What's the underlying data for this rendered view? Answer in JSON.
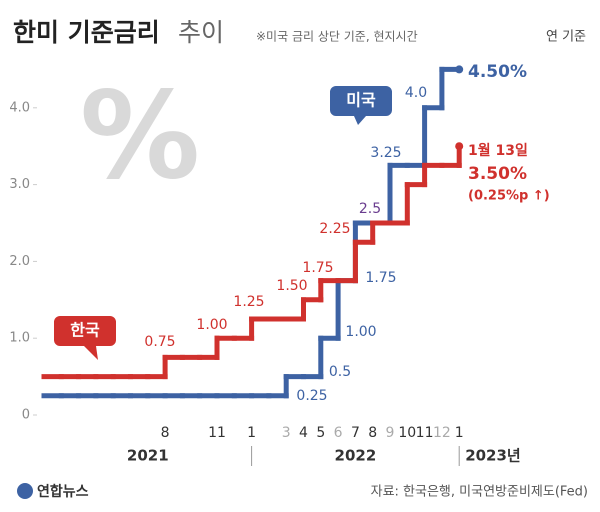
{
  "chart_data": {
    "type": "step",
    "title": "한미 기준금리",
    "subtitle": "추이",
    "note": "※미국 금리 상단 기준, 현지시간",
    "unit_note": "연 기준",
    "watermark": "%",
    "source": "자료: 한국은행, 미국연방준비제도(Fed)",
    "logo": "연합뉴스",
    "categories": [
      null,
      null,
      null,
      null,
      null,
      null,
      null,
      "8",
      null,
      null,
      "11",
      null,
      "1",
      null,
      "3",
      "4",
      "5",
      "6",
      "7",
      "8",
      "9",
      "10",
      "11",
      "12",
      "1"
    ],
    "year_labels": [
      {
        "label": "2021",
        "from": 0,
        "to": 12
      },
      {
        "label": "2022",
        "from": 12,
        "to": 24
      },
      {
        "label": "2023년",
        "from": 24,
        "to": 24
      }
    ],
    "ylim": [
      0,
      4.5
    ],
    "yticks": [
      0,
      {
        "value": 1,
        "label": "1.0"
      },
      {
        "value": 2,
        "label": "2.0"
      },
      {
        "value": 3,
        "label": "3.0"
      },
      {
        "value": 4,
        "label": "4.0"
      }
    ],
    "grid": false,
    "series": [
      {
        "name": "한국",
        "color": "#d0312d",
        "values": [
          0.5,
          0.5,
          0.5,
          0.5,
          0.5,
          0.5,
          0.5,
          0.75,
          0.75,
          0.75,
          1.0,
          1.0,
          1.25,
          1.25,
          1.25,
          1.5,
          1.75,
          1.75,
          2.25,
          2.5,
          2.5,
          3.0,
          3.25,
          3.25,
          3.5
        ],
        "value_labels": [
          null,
          null,
          null,
          null,
          null,
          null,
          null,
          "0.75",
          null,
          null,
          "1.00",
          null,
          "1.25",
          null,
          null,
          "1.50",
          "1.75",
          null,
          "2.25",
          null,
          null,
          null,
          null,
          null,
          "3.50%"
        ]
      },
      {
        "name": "미국",
        "color": "#3d62a3",
        "values": [
          0.25,
          0.25,
          0.25,
          0.25,
          0.25,
          0.25,
          0.25,
          0.25,
          0.25,
          0.25,
          0.25,
          0.25,
          0.25,
          0.25,
          0.5,
          0.5,
          1.0,
          1.75,
          2.5,
          2.5,
          3.25,
          3.25,
          4.0,
          4.5,
          4.5
        ],
        "value_labels": [
          "0.25",
          null,
          null,
          null,
          null,
          null,
          null,
          null,
          null,
          null,
          null,
          null,
          null,
          null,
          "0.5",
          null,
          "1.00",
          "1.75",
          "2.5",
          null,
          "3.25",
          null,
          "4.0",
          null,
          "4.50%"
        ]
      }
    ],
    "annotations": [
      "1월 13일",
      "(0.25%p ↑)"
    ]
  }
}
